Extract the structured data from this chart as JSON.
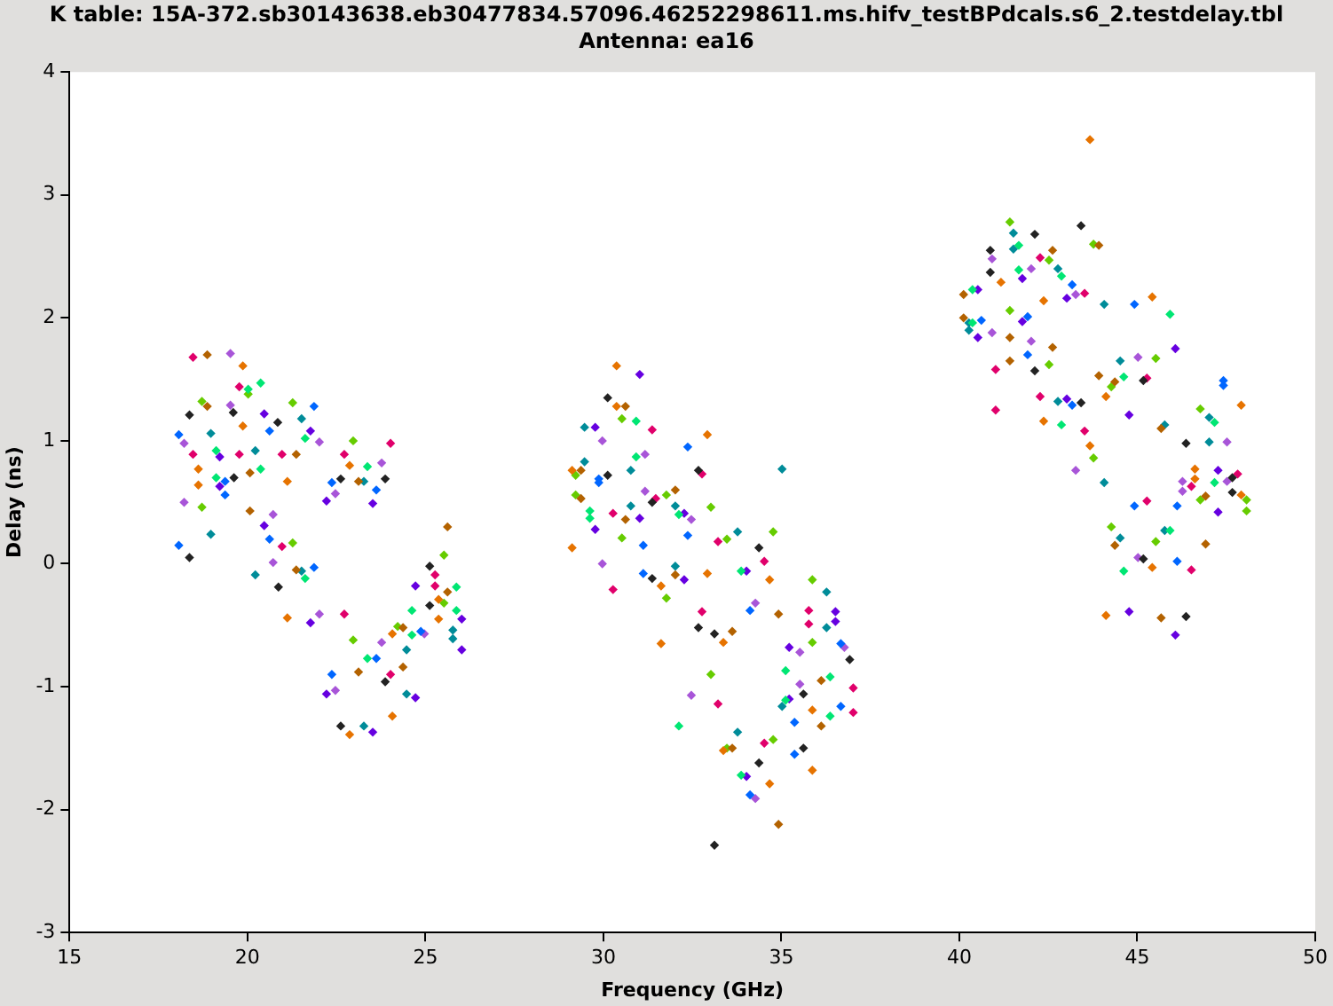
{
  "chart_data": {
    "type": "scatter",
    "title": "K table: 15A-372.sb30143638.eb30477834.57096.46252298611.ms.hifv_testBPdcals.s6_2.testdelay.tbl   Antenna: ea16",
    "xlabel": "Frequency (GHz)",
    "ylabel": "Delay (ns)",
    "xlim": [
      15,
      50
    ],
    "xticks": [
      15,
      20,
      25,
      30,
      35,
      40,
      45,
      50
    ],
    "ylim": [
      -3,
      4
    ],
    "yticks": [
      -3,
      -2,
      -1,
      0,
      1,
      2,
      3,
      4
    ],
    "grid": false,
    "legend": false,
    "marker": "diamond",
    "series": [
      {
        "color": "#222222",
        "x": [
          18.37,
          19.6,
          20.85,
          19.62,
          22.62,
          23.87,
          18.37,
          20.87,
          25.12,
          25.12,
          23.87,
          22.62,
          30.12,
          30.12,
          32.67,
          31.37,
          31.37,
          34.37,
          32.67,
          33.12,
          36.92,
          35.62,
          35.62,
          34.37,
          33.12,
          40.87,
          40.87,
          42.12,
          43.42,
          42.12,
          43.42,
          45.17,
          46.37,
          47.67,
          47.67,
          45.17,
          46.37
        ],
        "values": [
          1.21,
          1.23,
          1.15,
          0.7,
          0.69,
          0.69,
          0.05,
          -0.19,
          -0.02,
          -0.34,
          -0.96,
          -1.32,
          1.35,
          0.72,
          0.76,
          0.5,
          -0.12,
          0.13,
          -0.52,
          -0.57,
          -0.78,
          -1.06,
          -1.5,
          -1.62,
          -2.29,
          2.55,
          2.37,
          2.68,
          2.75,
          1.57,
          1.31,
          1.49,
          0.98,
          0.7,
          0.58,
          0.04,
          -0.43
        ]
      },
      {
        "color": "#e67300",
        "x": [
          19.87,
          19.87,
          18.62,
          18.62,
          21.12,
          22.87,
          21.12,
          25.37,
          25.37,
          24.07,
          24.07,
          22.87,
          30.37,
          30.37,
          29.12,
          32.92,
          29.12,
          32.92,
          31.62,
          34.67,
          33.37,
          31.62,
          35.87,
          35.87,
          34.67,
          33.37,
          43.67,
          41.17,
          42.37,
          45.42,
          44.12,
          42.37,
          47.92,
          43.67,
          46.62,
          46.62,
          47.92,
          45.42,
          44.12
        ],
        "values": [
          1.61,
          1.12,
          0.77,
          0.64,
          0.67,
          0.8,
          -0.44,
          -0.29,
          -0.45,
          -0.57,
          -1.24,
          -1.39,
          1.61,
          1.28,
          0.76,
          1.05,
          0.13,
          -0.08,
          -0.18,
          -0.13,
          -0.64,
          -0.65,
          -1.19,
          -1.68,
          -1.79,
          -1.52,
          3.45,
          2.29,
          2.14,
          2.17,
          1.36,
          1.16,
          1.29,
          0.96,
          0.77,
          0.69,
          0.56,
          -0.03,
          -0.42
        ]
      },
      {
        "color": "#b36200",
        "x": [
          18.87,
          18.87,
          21.37,
          20.07,
          23.12,
          20.07,
          21.37,
          25.62,
          25.62,
          24.37,
          24.37,
          23.12,
          30.62,
          29.37,
          29.37,
          32.02,
          30.62,
          32.02,
          33.62,
          34.92,
          36.12,
          36.12,
          33.62,
          34.92,
          40.12,
          40.12,
          42.62,
          43.92,
          41.42,
          41.42,
          42.62,
          43.92,
          44.37,
          45.67,
          46.92,
          44.37,
          46.92,
          45.67
        ],
        "values": [
          1.7,
          1.28,
          0.89,
          0.74,
          0.67,
          0.43,
          -0.05,
          0.3,
          -0.23,
          -0.52,
          -0.84,
          -0.88,
          1.28,
          0.76,
          0.53,
          0.6,
          0.36,
          -0.09,
          -0.55,
          -0.41,
          -0.95,
          -1.32,
          -1.5,
          -2.12,
          2.19,
          2.0,
          2.55,
          2.59,
          1.84,
          1.65,
          1.76,
          1.53,
          1.48,
          1.1,
          0.55,
          0.15,
          0.16,
          -0.44
        ]
      },
      {
        "color": "#00e673",
        "x": [
          20.37,
          20.02,
          21.62,
          19.12,
          20.37,
          19.12,
          23.37,
          21.62,
          25.87,
          24.62,
          24.62,
          23.37,
          25.87,
          30.92,
          30.92,
          29.62,
          29.62,
          32.12,
          33.87,
          36.37,
          36.37,
          35.12,
          35.12,
          32.12,
          33.87,
          41.67,
          42.87,
          41.67,
          40.37,
          40.37,
          45.92,
          44.62,
          42.87,
          47.17,
          47.17,
          45.92,
          44.62
        ],
        "values": [
          1.47,
          1.42,
          1.02,
          0.92,
          0.77,
          0.7,
          0.79,
          -0.12,
          -0.19,
          -0.38,
          -0.58,
          -0.77,
          -0.38,
          1.16,
          0.87,
          0.43,
          0.37,
          0.4,
          -0.06,
          -0.92,
          -1.24,
          -0.87,
          -1.11,
          -1.32,
          -1.72,
          2.59,
          2.34,
          2.39,
          2.23,
          1.96,
          2.03,
          1.52,
          1.13,
          1.15,
          0.66,
          0.27,
          -0.06
        ]
      },
      {
        "color": "#66cc00",
        "x": [
          18.72,
          20.02,
          21.27,
          22.97,
          18.72,
          21.27,
          25.52,
          25.52,
          24.22,
          22.97,
          30.52,
          29.22,
          29.22,
          30.52,
          31.77,
          33.02,
          33.47,
          34.77,
          31.77,
          35.87,
          35.87,
          33.02,
          34.77,
          33.47,
          41.42,
          43.77,
          42.52,
          41.42,
          42.52,
          45.52,
          44.27,
          46.77,
          43.77,
          46.77,
          48.07,
          48.07,
          44.27,
          45.52
        ],
        "values": [
          1.32,
          1.38,
          1.31,
          1.0,
          0.46,
          0.17,
          0.07,
          -0.32,
          -0.51,
          -0.62,
          1.18,
          0.72,
          0.56,
          0.21,
          0.56,
          0.46,
          0.2,
          0.26,
          -0.28,
          -0.13,
          -0.64,
          -0.9,
          -1.43,
          -1.5,
          2.78,
          2.6,
          2.47,
          2.06,
          1.62,
          1.67,
          1.44,
          1.26,
          0.86,
          0.52,
          0.52,
          0.43,
          0.3,
          0.18
        ]
      },
      {
        "color": "#0066ff",
        "x": [
          18.07,
          21.87,
          20.62,
          19.37,
          19.37,
          22.37,
          23.62,
          18.07,
          20.62,
          21.87,
          24.87,
          23.62,
          22.37,
          29.87,
          29.87,
          32.37,
          32.37,
          31.12,
          31.12,
          34.12,
          36.67,
          36.67,
          35.37,
          35.37,
          34.12,
          40.62,
          41.92,
          43.17,
          44.92,
          41.92,
          43.17,
          47.42,
          47.42,
          44.92,
          46.12,
          46.12
        ],
        "values": [
          1.05,
          1.28,
          1.08,
          0.67,
          0.56,
          0.66,
          0.6,
          0.15,
          0.2,
          -0.03,
          -0.55,
          -0.77,
          -0.9,
          0.69,
          0.66,
          0.95,
          0.23,
          0.15,
          -0.08,
          -0.38,
          -0.65,
          -1.16,
          -1.29,
          -1.55,
          -1.88,
          1.98,
          2.01,
          2.27,
          2.11,
          1.7,
          1.29,
          1.49,
          1.45,
          0.47,
          0.47,
          0.02
        ]
      },
      {
        "color": "#008c99",
        "x": [
          18.97,
          21.52,
          20.22,
          23.27,
          18.97,
          20.22,
          21.52,
          25.77,
          25.77,
          24.47,
          24.47,
          23.27,
          29.47,
          29.47,
          30.77,
          30.77,
          32.02,
          35.02,
          33.77,
          32.02,
          36.27,
          36.27,
          35.02,
          33.77,
          41.52,
          41.52,
          42.77,
          40.27,
          40.27,
          44.07,
          42.77,
          44.52,
          45.77,
          47.02,
          47.02,
          44.07,
          45.77,
          44.52
        ],
        "values": [
          1.06,
          1.18,
          0.92,
          0.67,
          0.24,
          -0.09,
          -0.06,
          -0.54,
          -0.61,
          -0.7,
          -1.06,
          -1.32,
          1.11,
          0.83,
          0.76,
          0.47,
          0.47,
          0.77,
          0.26,
          -0.02,
          -0.23,
          -0.52,
          -1.16,
          -1.37,
          2.69,
          2.56,
          2.4,
          1.96,
          1.9,
          2.11,
          1.32,
          1.65,
          1.13,
          1.19,
          0.99,
          0.66,
          0.27,
          0.21
        ]
      },
      {
        "color": "#6600e0",
        "x": [
          20.47,
          19.22,
          19.22,
          21.77,
          20.47,
          22.22,
          23.52,
          24.72,
          26.02,
          26.02,
          21.77,
          22.22,
          24.72,
          23.52,
          31.02,
          29.77,
          29.77,
          31.02,
          32.27,
          32.27,
          34.02,
          36.52,
          36.52,
          35.22,
          35.22,
          34.02,
          40.52,
          41.77,
          41.77,
          40.52,
          43.02,
          43.02,
          46.07,
          44.77,
          47.27,
          47.27,
          44.77,
          46.07
        ],
        "values": [
          1.22,
          0.87,
          0.63,
          1.08,
          0.31,
          0.51,
          0.49,
          -0.18,
          -0.45,
          -0.7,
          -0.48,
          -1.06,
          -1.09,
          -1.37,
          1.54,
          1.11,
          0.28,
          0.37,
          0.41,
          -0.13,
          -0.06,
          -0.39,
          -0.47,
          -0.68,
          -1.1,
          -1.73,
          2.23,
          2.32,
          1.97,
          1.84,
          2.16,
          1.34,
          1.75,
          1.21,
          0.76,
          0.42,
          -0.39,
          -0.58
        ]
      },
      {
        "color": "#a855d8",
        "x": [
          19.52,
          19.52,
          18.22,
          22.02,
          23.77,
          18.22,
          22.47,
          20.72,
          20.72,
          22.02,
          23.77,
          24.97,
          22.47,
          29.97,
          31.17,
          31.17,
          32.47,
          29.97,
          34.27,
          35.52,
          36.77,
          35.52,
          32.47,
          34.27,
          40.92,
          42.02,
          40.92,
          42.02,
          43.27,
          45.02,
          47.52,
          46.27,
          47.52,
          46.27,
          43.27,
          45.02
        ],
        "values": [
          1.71,
          1.29,
          0.98,
          0.99,
          0.82,
          0.5,
          0.57,
          0.4,
          0.01,
          -0.41,
          -0.64,
          -0.57,
          -1.03,
          1.0,
          0.89,
          0.59,
          0.36,
          0.0,
          -0.32,
          -0.72,
          -0.68,
          -0.98,
          -1.07,
          -1.91,
          2.48,
          2.4,
          1.88,
          1.81,
          2.19,
          1.68,
          0.99,
          0.67,
          0.67,
          0.59,
          0.76,
          0.05
        ]
      },
      {
        "color": "#e0006b",
        "x": [
          18.47,
          19.77,
          18.47,
          19.77,
          20.97,
          22.72,
          24.02,
          20.97,
          22.72,
          25.27,
          25.27,
          24.02,
          31.37,
          32.77,
          31.47,
          30.27,
          30.27,
          33.22,
          34.52,
          32.77,
          35.77,
          35.77,
          37.02,
          37.02,
          33.22,
          34.52,
          42.27,
          43.52,
          41.02,
          41.02,
          42.27,
          45.27,
          43.52,
          47.82,
          46.52,
          45.27,
          46.52
        ],
        "values": [
          1.68,
          1.44,
          0.89,
          0.89,
          0.89,
          0.89,
          0.98,
          0.14,
          -0.41,
          -0.09,
          -0.18,
          -0.9,
          1.09,
          0.73,
          0.53,
          0.41,
          -0.21,
          0.18,
          0.02,
          -0.39,
          -0.38,
          -0.49,
          -1.01,
          -1.21,
          -1.14,
          -1.46,
          2.49,
          2.2,
          1.58,
          1.25,
          1.36,
          1.51,
          1.08,
          0.73,
          0.63,
          0.51,
          -0.05
        ]
      }
    ]
  }
}
